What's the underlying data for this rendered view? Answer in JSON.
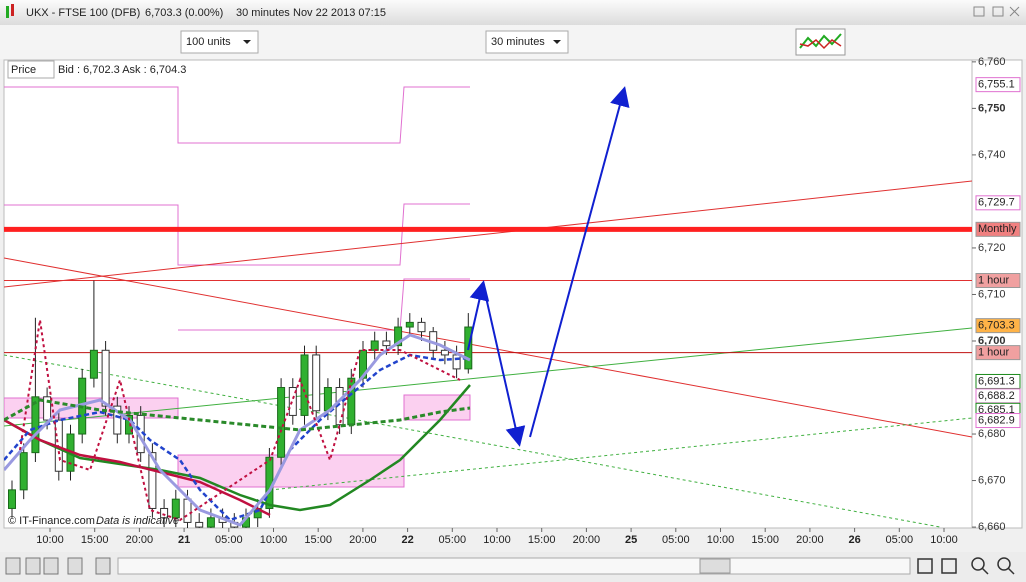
{
  "window": {
    "symbol": "UKX - FTSE 100 (DFB)",
    "quote": "6,703.3 (0.00%)",
    "interval": "30 minutes",
    "timestamp": "Nov 22 2013 07:15"
  },
  "toolbar": {
    "size_select": "100 units",
    "interval_select": "30 minutes"
  },
  "chart_header": {
    "label": "Price",
    "bid_ask": "Bid : 6,702.3 Ask : 6,704.3"
  },
  "footer": {
    "copyright": "© IT-Finance.com",
    "note": "Data is indicative"
  },
  "chart_data": {
    "type": "candlestick",
    "ylim": [
      6659.8,
      6760.4
    ],
    "yticks": [
      {
        "value": 6760,
        "label": "6,760"
      },
      {
        "value": 6750,
        "label": "6,750"
      },
      {
        "value": 6740,
        "label": "6,740"
      },
      {
        "value": 6720,
        "label": "6,720"
      },
      {
        "value": 6710,
        "label": "6,710"
      },
      {
        "value": 6700,
        "label": "6,700"
      },
      {
        "value": 6680,
        "label": "6,680"
      },
      {
        "value": 6670,
        "label": "6,670"
      },
      {
        "value": 6660,
        "label": "6,660"
      }
    ],
    "bold_ticks": [
      6750,
      6700
    ],
    "x_labels": [
      "10:00",
      "15:00",
      "20:00",
      "21",
      "05:00",
      "10:00",
      "15:00",
      "20:00",
      "22",
      "05:00",
      "10:00",
      "15:00",
      "20:00",
      "25",
      "05:00",
      "10:00",
      "15:00",
      "20:00",
      "26",
      "05:00",
      "10:00"
    ],
    "candles": [
      {
        "o": 6664,
        "h": 6670,
        "l": 6662,
        "c": 6668
      },
      {
        "o": 6668,
        "h": 6678,
        "l": 6666,
        "c": 6676
      },
      {
        "o": 6676,
        "h": 6705,
        "l": 6674,
        "c": 6688
      },
      {
        "o": 6688,
        "h": 6690,
        "l": 6681,
        "c": 6683
      },
      {
        "o": 6683,
        "h": 6685,
        "l": 6670,
        "c": 6672
      },
      {
        "o": 6672,
        "h": 6682,
        "l": 6670,
        "c": 6680
      },
      {
        "o": 6680,
        "h": 6694,
        "l": 6678,
        "c": 6692
      },
      {
        "o": 6692,
        "h": 6713,
        "l": 6690,
        "c": 6698
      },
      {
        "o": 6698,
        "h": 6700,
        "l": 6684,
        "c": 6686
      },
      {
        "o": 6686,
        "h": 6688,
        "l": 6678,
        "c": 6680
      },
      {
        "o": 6680,
        "h": 6686,
        "l": 6678,
        "c": 6684
      },
      {
        "o": 6684,
        "h": 6686,
        "l": 6674,
        "c": 6676
      },
      {
        "o": 6676,
        "h": 6678,
        "l": 6662,
        "c": 6664
      },
      {
        "o": 6664,
        "h": 6666,
        "l": 6660,
        "c": 6662
      },
      {
        "o": 6662,
        "h": 6668,
        "l": 6660,
        "c": 6666
      },
      {
        "o": 6666,
        "h": 6668,
        "l": 6659,
        "c": 6661
      },
      {
        "o": 6661,
        "h": 6663,
        "l": 6658,
        "c": 6660
      },
      {
        "o": 6660,
        "h": 6664,
        "l": 6658,
        "c": 6662
      },
      {
        "o": 6662,
        "h": 6664,
        "l": 6659,
        "c": 6661
      },
      {
        "o": 6661,
        "h": 6663,
        "l": 6658,
        "c": 6660
      },
      {
        "o": 6660,
        "h": 6664,
        "l": 6658,
        "c": 6662
      },
      {
        "o": 6662,
        "h": 6666,
        "l": 6660,
        "c": 6664
      },
      {
        "o": 6664,
        "h": 6677,
        "l": 6662,
        "c": 6675
      },
      {
        "o": 6675,
        "h": 6692,
        "l": 6673,
        "c": 6690
      },
      {
        "o": 6690,
        "h": 6692,
        "l": 6682,
        "c": 6684
      },
      {
        "o": 6684,
        "h": 6699,
        "l": 6682,
        "c": 6697
      },
      {
        "o": 6697,
        "h": 6699,
        "l": 6683,
        "c": 6685
      },
      {
        "o": 6685,
        "h": 6692,
        "l": 6683,
        "c": 6690
      },
      {
        "o": 6690,
        "h": 6692,
        "l": 6680,
        "c": 6682
      },
      {
        "o": 6682,
        "h": 6694,
        "l": 6680,
        "c": 6692
      },
      {
        "o": 6692,
        "h": 6700,
        "l": 6690,
        "c": 6698
      },
      {
        "o": 6698,
        "h": 6702,
        "l": 6696,
        "c": 6700
      },
      {
        "o": 6700,
        "h": 6702,
        "l": 6697,
        "c": 6699
      },
      {
        "o": 6699,
        "h": 6705,
        "l": 6697,
        "c": 6703
      },
      {
        "o": 6703,
        "h": 6706,
        "l": 6701,
        "c": 6704
      },
      {
        "o": 6704,
        "h": 6705,
        "l": 6700,
        "c": 6702
      },
      {
        "o": 6702,
        "h": 6703,
        "l": 6696,
        "c": 6698
      },
      {
        "o": 6698,
        "h": 6700,
        "l": 6695,
        "c": 6697
      },
      {
        "o": 6697,
        "h": 6699,
        "l": 6692,
        "c": 6694
      },
      {
        "o": 6694,
        "h": 6706,
        "l": 6693,
        "c": 6703
      }
    ],
    "levels": [
      {
        "value": 6724,
        "color": "#ff2020",
        "width": 5
      },
      {
        "value": 6713,
        "color": "#e03030",
        "width": 1
      },
      {
        "value": 6697.5,
        "color": "#c01010",
        "width": 1
      }
    ],
    "price_tags": [
      {
        "value": 6755.1,
        "label": "6,755.1",
        "color": "#e070d0",
        "bg": "#ffffff"
      },
      {
        "value": 6729.7,
        "label": "6,729.7",
        "color": "#e070d0",
        "bg": "#ffffff"
      },
      {
        "value": 6724,
        "label": "Monthly",
        "color": "#222222",
        "bg": "#f08080"
      },
      {
        "value": 6713,
        "label": "1 hour",
        "color": "#222222",
        "bg": "#f0a0a0"
      },
      {
        "value": 6703.3,
        "label": "6,703.3",
        "color": "#222222",
        "bg": "#ffb347"
      },
      {
        "value": 6697.5,
        "label": "1 hour",
        "color": "#222222",
        "bg": "#f0a0a0"
      },
      {
        "value": 6691.3,
        "label": "6,691.3",
        "color": "#1a8a1a",
        "bg": "#ffffff"
      },
      {
        "value": 6688.2,
        "label": "6,688.2",
        "color": "#e070d0",
        "bg": "#ffffff"
      },
      {
        "value": 6685.1,
        "label": "6,685.1",
        "color": "#1a8a1a",
        "bg": "#ffffff"
      },
      {
        "value": 6682.9,
        "label": "6,682.9",
        "color": "#e070d0",
        "bg": "#ffffff"
      }
    ]
  }
}
